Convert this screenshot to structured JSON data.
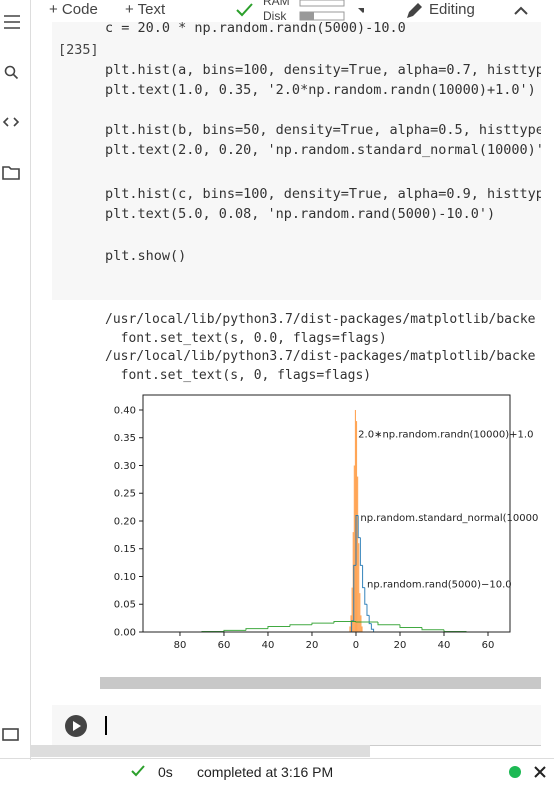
{
  "toolbar": {
    "add_code": "+ Code",
    "add_text": "+ Text",
    "ram": "RAM",
    "disk": "Disk",
    "mode": "Editing"
  },
  "cell": {
    "execution_count": "[235]",
    "code": [
      "c = 20.0 * np.random.randn(5000)-10.0",
      "plt.hist(a, bins=100, density=True, alpha=0.7, histtype",
      "plt.text(1.0, 0.35, '2.0*np.random.randn(10000)+1.0')",
      "plt.hist(b, bins=50, density=True, alpha=0.5, histtype=",
      "plt.text(2.0, 0.20, 'np.random.standard_normal(10000)')",
      "plt.hist(c, bins=100, density=True, alpha=0.9, histtype",
      "plt.text(5.0, 0.08, 'np.random.rand(5000)-10.0')",
      "plt.show()"
    ]
  },
  "output": {
    "stderr": [
      "/usr/local/lib/python3.7/dist-packages/matplotlib/backe",
      "  font.set_text(s, 0.0, flags=flags)",
      "/usr/local/lib/python3.7/dist-packages/matplotlib/backe",
      "  font.set_text(s, 0, flags=flags)"
    ]
  },
  "chart_data": {
    "type": "histogram",
    "xlim": [
      -96.8,
      70
    ],
    "ylim": [
      0,
      0.427
    ],
    "xticks": [
      {
        "value": -80,
        "label": "80"
      },
      {
        "value": -60,
        "label": "60"
      },
      {
        "value": -40,
        "label": "40"
      },
      {
        "value": -20,
        "label": "20"
      },
      0,
      20,
      40,
      60
    ],
    "yticks": [
      {
        "value": 0,
        "label": "0.00"
      },
      {
        "value": 0.05,
        "label": "0.05"
      },
      {
        "value": 0.1,
        "label": "0.10"
      },
      {
        "value": 0.15,
        "label": "0.15"
      },
      {
        "value": 0.2,
        "label": "0.20"
      },
      {
        "value": 0.25,
        "label": "0.25"
      },
      {
        "value": 0.3,
        "label": "0.30"
      },
      {
        "value": 0.35,
        "label": "0.35"
      },
      {
        "value": 0.4,
        "label": "0.40"
      }
    ],
    "series": [
      {
        "color": "#ff7f0e",
        "alpha": 0.7,
        "filled": true,
        "bins": [
          -3,
          -2.5,
          -2,
          -1.5,
          -1,
          -0.5,
          0,
          0.5,
          1,
          1.5,
          2,
          2.5,
          3
        ],
        "values": [
          0.01,
          0.03,
          0.08,
          0.18,
          0.3,
          0.4,
          0.38,
          0.28,
          0.16,
          0.07,
          0.03,
          0.01
        ]
      },
      {
        "color": "#1f77b4",
        "alpha": 0.9,
        "filled": false,
        "bins": [
          -2,
          -1,
          0,
          1,
          2,
          3,
          4,
          5,
          6,
          7,
          8
        ],
        "values": [
          0.02,
          0.12,
          0.21,
          0.17,
          0.12,
          0.08,
          0.05,
          0.03,
          0.015,
          0.005
        ]
      },
      {
        "color": "#2ca02c",
        "alpha": 0.9,
        "filled": false,
        "bins": [
          -70,
          -60,
          -50,
          -40,
          -30,
          -20,
          -10,
          0,
          10,
          20,
          30,
          40,
          50
        ],
        "values": [
          0.001,
          0.003,
          0.006,
          0.01,
          0.013,
          0.016,
          0.019,
          0.018,
          0.013,
          0.008,
          0.004,
          0.001
        ]
      }
    ],
    "annotations": [
      {
        "text": "2.0∗np.random.randn(10000)+1.0",
        "x": 1.0,
        "y": 0.35
      },
      {
        "text": "np.random.standard_normal(10000",
        "x": 2.0,
        "y": 0.2
      },
      {
        "text": "np.random.rand(5000)−10.0",
        "x": 5.0,
        "y": 0.08
      }
    ]
  },
  "status": {
    "elapsed": "0s",
    "message": "completed at 3:16 PM"
  }
}
